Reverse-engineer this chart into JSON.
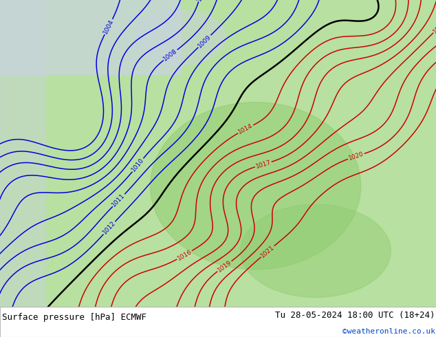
{
  "title_left": "Surface pressure [hPa] ECMWF",
  "title_right": "Tu 28-05-2024 18:00 UTC (18+24)",
  "credit": "©weatheronline.co.uk",
  "bg_color_ocean": "#c8d4dc",
  "bg_color_land": "#b8e0a0",
  "bg_color_land_bright": "#90cc70",
  "blue_contour_color": "#0000dd",
  "red_contour_color": "#cc0000",
  "black_contour_color": "#000000",
  "credit_color": "#0044cc",
  "figsize": [
    6.34,
    4.9
  ],
  "dpi": 100,
  "lon_min": -7,
  "lon_max": 22,
  "lat_min": 44.5,
  "lat_max": 61.0
}
